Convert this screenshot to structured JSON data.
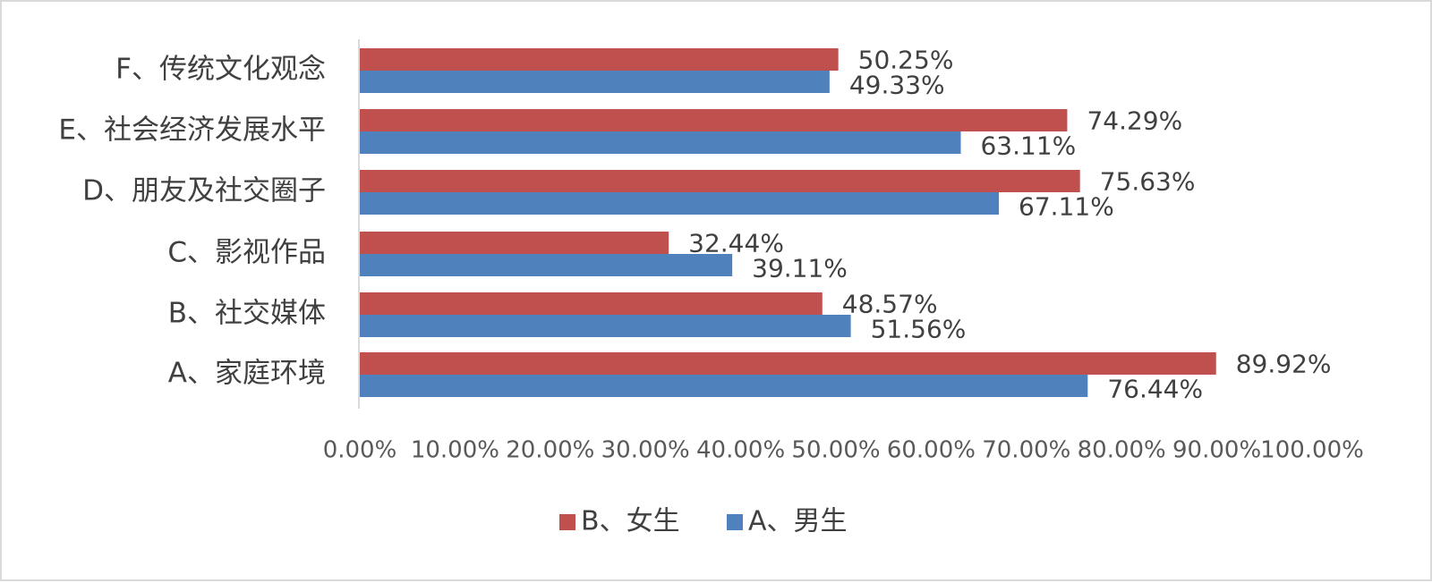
{
  "chart_data": {
    "type": "bar",
    "orientation": "horizontal",
    "categories": [
      "A、家庭环境",
      "B、社交媒体",
      "C、影视作品",
      "D、朋友及社交圈子",
      "E、社会经济发展水平",
      "F、传统文化观念"
    ],
    "series": [
      {
        "name": "B、女生",
        "color": "#C0504D",
        "values": [
          89.92,
          48.57,
          32.44,
          75.63,
          74.29,
          50.25
        ],
        "labels": [
          "89.92%",
          "48.57%",
          "32.44%",
          "75.63%",
          "74.29%",
          "50.25%"
        ]
      },
      {
        "name": "A、男生",
        "color": "#4F81BD",
        "values": [
          76.44,
          51.56,
          39.11,
          67.11,
          63.11,
          49.33
        ],
        "labels": [
          "76.44%",
          "51.56%",
          "39.11%",
          "67.11%",
          "63.11%",
          "49.33%"
        ]
      }
    ],
    "x_ticks": [
      "0.00%",
      "10.00%",
      "20.00%",
      "30.00%",
      "40.00%",
      "50.00%",
      "60.00%",
      "70.00%",
      "80.00%",
      "90.00%",
      "100.00%"
    ],
    "xlim": [
      0,
      100
    ],
    "title": "",
    "xlabel": "",
    "ylabel": "",
    "grid": false,
    "legend_position": "bottom",
    "axis_line_color": "#d9d9d9"
  }
}
